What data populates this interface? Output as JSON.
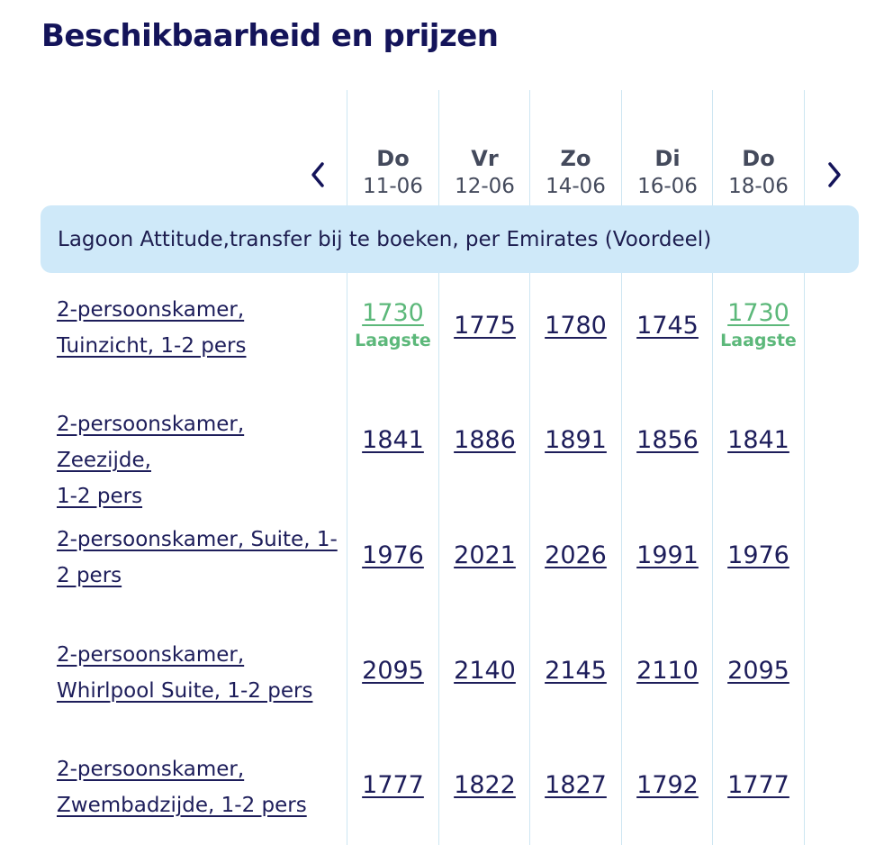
{
  "title": "Beschikbaarheid en prijzen",
  "navigation": {
    "prev_icon": "chevron-left-icon",
    "next_icon": "chevron-right-icon"
  },
  "dates": [
    {
      "day": "Do",
      "date": "11-06"
    },
    {
      "day": "Vr",
      "date": "12-06"
    },
    {
      "day": "Zo",
      "date": "14-06"
    },
    {
      "day": "Di",
      "date": "16-06"
    },
    {
      "day": "Do",
      "date": "18-06"
    }
  ],
  "banner": "Lagoon Attitude,transfer bij te boeken, per Emirates (Voordeel)",
  "lowest_label": "Laagste",
  "rooms": [
    {
      "name_lines": [
        "2-persoonskamer,",
        "Tuinzicht, 1-2 pers"
      ],
      "prices": [
        "1730",
        "1775",
        "1780",
        "1745",
        "1730"
      ],
      "lowest": [
        true,
        false,
        false,
        false,
        true
      ]
    },
    {
      "name_lines": [
        "2-persoonskamer, Zeezijde,",
        "1-2 pers"
      ],
      "prices": [
        "1841",
        "1886",
        "1891",
        "1856",
        "1841"
      ],
      "lowest": [
        false,
        false,
        false,
        false,
        false
      ]
    },
    {
      "name_lines": [
        "2-persoonskamer, Suite, 1-",
        "2 pers"
      ],
      "prices": [
        "1976",
        "2021",
        "2026",
        "1991",
        "1976"
      ],
      "lowest": [
        false,
        false,
        false,
        false,
        false
      ]
    },
    {
      "name_lines": [
        "2-persoonskamer,",
        "Whirlpool Suite, 1-2 pers"
      ],
      "prices": [
        "2095",
        "2140",
        "2145",
        "2110",
        "2095"
      ],
      "lowest": [
        false,
        false,
        false,
        false,
        false
      ]
    },
    {
      "name_lines": [
        "2-persoonskamer,",
        "Zwembadzijde, 1-2 pers"
      ],
      "prices": [
        "1777",
        "1822",
        "1827",
        "1792",
        "1777"
      ],
      "lowest": [
        false,
        false,
        false,
        false,
        false
      ]
    }
  ],
  "colors": {
    "title": "#14145a",
    "banner_bg": "#cfe9f9",
    "lowest": "#5cb87a",
    "divider": "#cde6f2"
  }
}
